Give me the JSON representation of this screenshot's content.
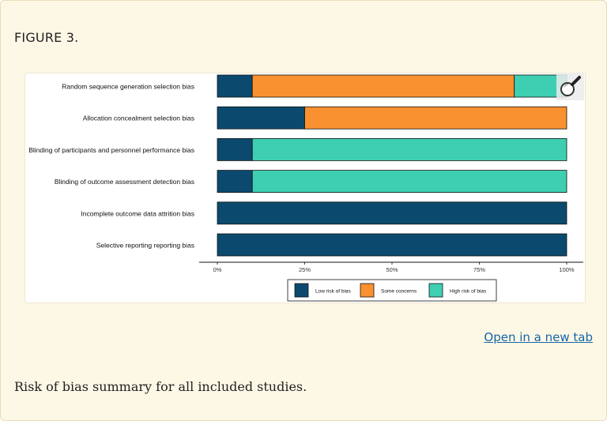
{
  "figure": {
    "label": "FIGURE 3.",
    "open_link": "Open in a new tab",
    "caption": "Risk of bias summary for all included studies."
  },
  "icons": {
    "zoom": "magnifier-zoom-icon"
  },
  "chart_data": {
    "type": "bar",
    "orientation": "horizontal",
    "stacked": true,
    "categories": [
      "Random sequence generation  selection bias",
      "Allocation concealment  selection bias",
      "Blinding of participants and personnel  performance bias",
      "Blinding of outcome assessment  detection bias",
      "Incomplete outcome data  attrition bias",
      "Selective reporting  reporting bias"
    ],
    "series": [
      {
        "name": "Low risk of bias",
        "color": "#0b4a6e",
        "values": [
          10,
          25,
          10,
          10,
          100,
          100
        ]
      },
      {
        "name": "Some concerns",
        "color": "#fa9130",
        "values": [
          75,
          75,
          0,
          0,
          0,
          0
        ]
      },
      {
        "name": "High risk of bias",
        "color": "#3ecfb2",
        "values": [
          15,
          0,
          90,
          90,
          0,
          0
        ]
      }
    ],
    "xlim": [
      0,
      100
    ],
    "xticks": [
      "0%",
      "25%",
      "50%",
      "75%",
      "100%"
    ],
    "xtick_values": [
      0,
      25,
      50,
      75,
      100
    ],
    "legend_position": "bottom",
    "grid": false
  }
}
